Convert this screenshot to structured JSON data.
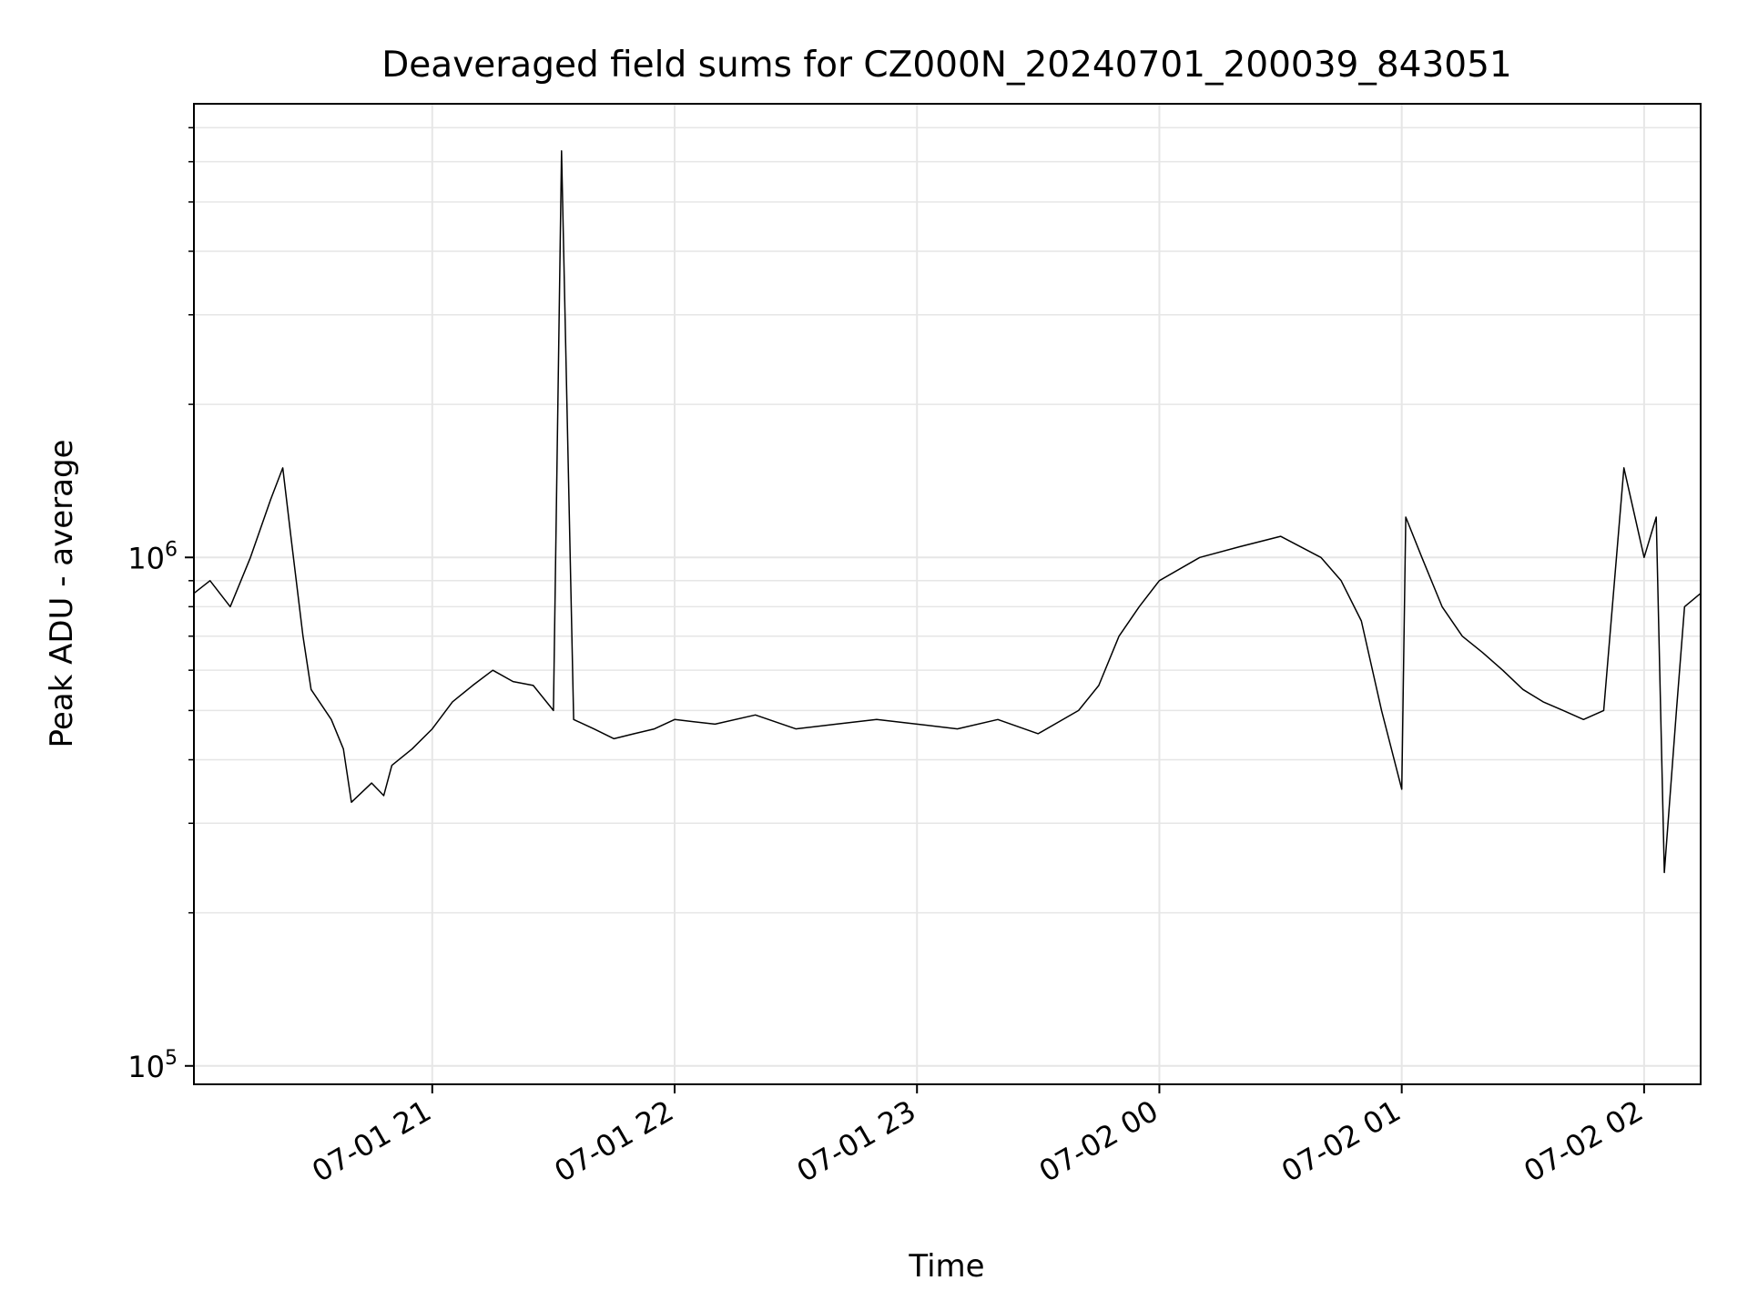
{
  "figure": {
    "title": "Deaveraged field sums for CZ000N_20240701_200039_843051",
    "xlabel": "Time",
    "ylabel": "Peak ADU - average"
  },
  "chart_data": {
    "type": "line",
    "title": "Deaveraged field sums for CZ000N_20240701_200039_843051",
    "xlabel": "Time",
    "ylabel": "Peak ADU - average",
    "yscale": "log",
    "xlim": [
      "2024-07-01 20:01",
      "2024-07-02 02:14"
    ],
    "ylim": [
      92000,
      7800000
    ],
    "grid": true,
    "legend": "none",
    "line_color": "#000000",
    "grid_color": "#e6e6e6",
    "x_ticks": [
      {
        "time": "2024-07-01 21:00",
        "label": "07-01 21"
      },
      {
        "time": "2024-07-01 22:00",
        "label": "07-01 22"
      },
      {
        "time": "2024-07-01 23:00",
        "label": "07-01 23"
      },
      {
        "time": "2024-07-02 00:00",
        "label": "07-02 00"
      },
      {
        "time": "2024-07-02 01:00",
        "label": "07-02 01"
      },
      {
        "time": "2024-07-02 02:00",
        "label": "07-02 02"
      }
    ],
    "y_ticks": [
      {
        "value": 100000,
        "base": "10",
        "exp": "5"
      },
      {
        "value": 1000000,
        "base": "10",
        "exp": "6"
      }
    ],
    "series": [
      {
        "x": [
          "2024-07-01 20:01",
          "2024-07-01 20:05",
          "2024-07-01 20:10",
          "2024-07-01 20:15",
          "2024-07-01 20:20",
          "2024-07-01 20:23",
          "2024-07-01 20:25",
          "2024-07-01 20:28",
          "2024-07-01 20:30",
          "2024-07-01 20:35",
          "2024-07-01 20:38",
          "2024-07-01 20:40",
          "2024-07-01 20:45",
          "2024-07-01 20:48",
          "2024-07-01 20:50",
          "2024-07-01 20:55",
          "2024-07-01 21:00",
          "2024-07-01 21:05",
          "2024-07-01 21:10",
          "2024-07-01 21:15",
          "2024-07-01 21:20",
          "2024-07-01 21:25",
          "2024-07-01 21:30",
          "2024-07-01 21:32",
          "2024-07-01 21:35",
          "2024-07-01 21:40",
          "2024-07-01 21:45",
          "2024-07-01 21:50",
          "2024-07-01 21:55",
          "2024-07-01 22:00",
          "2024-07-01 22:10",
          "2024-07-01 22:20",
          "2024-07-01 22:30",
          "2024-07-01 22:40",
          "2024-07-01 22:50",
          "2024-07-01 23:00",
          "2024-07-01 23:10",
          "2024-07-01 23:20",
          "2024-07-01 23:30",
          "2024-07-01 23:40",
          "2024-07-01 23:45",
          "2024-07-01 23:50",
          "2024-07-01 23:55",
          "2024-07-02 00:00",
          "2024-07-02 00:10",
          "2024-07-02 00:20",
          "2024-07-02 00:30",
          "2024-07-02 00:40",
          "2024-07-02 00:45",
          "2024-07-02 00:50",
          "2024-07-02 00:55",
          "2024-07-02 01:00",
          "2024-07-02 01:01",
          "2024-07-02 01:05",
          "2024-07-02 01:10",
          "2024-07-02 01:15",
          "2024-07-02 01:20",
          "2024-07-02 01:25",
          "2024-07-02 01:30",
          "2024-07-02 01:35",
          "2024-07-02 01:40",
          "2024-07-02 01:45",
          "2024-07-02 01:50",
          "2024-07-02 01:55",
          "2024-07-02 02:00",
          "2024-07-02 02:03",
          "2024-07-02 02:05",
          "2024-07-02 02:08",
          "2024-07-02 02:10",
          "2024-07-02 02:14"
        ],
        "y": [
          850000,
          900000,
          800000,
          1000000,
          1300000,
          1500000,
          1100000,
          700000,
          550000,
          480000,
          420000,
          330000,
          360000,
          340000,
          390000,
          420000,
          460000,
          520000,
          560000,
          600000,
          570000,
          560000,
          500000,
          6300000,
          480000,
          460000,
          440000,
          450000,
          460000,
          480000,
          470000,
          490000,
          460000,
          470000,
          480000,
          470000,
          460000,
          480000,
          450000,
          500000,
          560000,
          700000,
          800000,
          900000,
          1000000,
          1050000,
          1100000,
          1000000,
          900000,
          750000,
          500000,
          350000,
          1200000,
          1000000,
          800000,
          700000,
          650000,
          600000,
          550000,
          520000,
          500000,
          480000,
          500000,
          1500000,
          1000000,
          1200000,
          240000,
          500000,
          800000,
          850000
        ]
      }
    ]
  }
}
